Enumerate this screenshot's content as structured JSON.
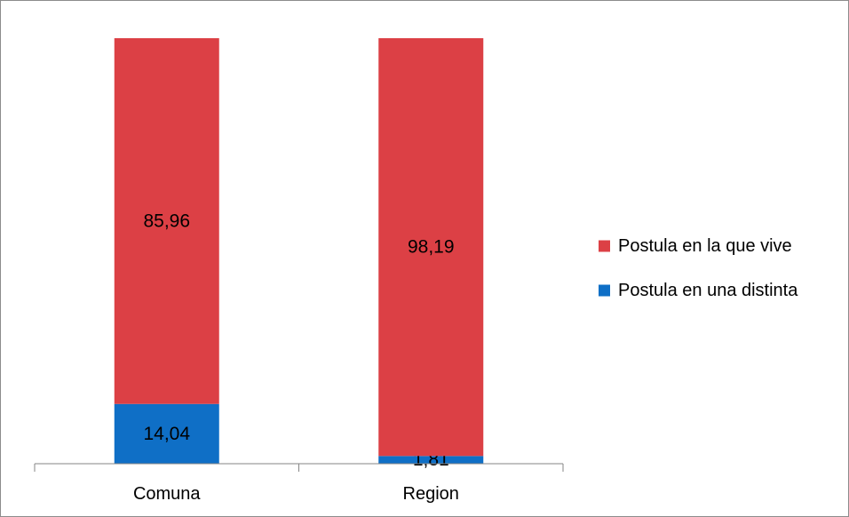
{
  "chart_data": {
    "type": "bar",
    "stacked": true,
    "percent_stacked": true,
    "categories": [
      "Comuna",
      "Region"
    ],
    "series": [
      {
        "name": "Postula en una distinta",
        "values": [
          14.04,
          1.81
        ],
        "labels": [
          "14,04",
          "1,81"
        ],
        "color": "#0f6fc6"
      },
      {
        "name": "Postula en la que vive",
        "values": [
          85.96,
          98.19
        ],
        "labels": [
          "85,96",
          "98,19"
        ],
        "color": "#dc4045"
      }
    ],
    "legend_order": [
      1,
      0
    ],
    "legend_position": "right",
    "ylim": [
      0,
      100
    ],
    "y_axis_visible": false,
    "grid": false,
    "title": "",
    "xlabel": "",
    "ylabel": ""
  }
}
